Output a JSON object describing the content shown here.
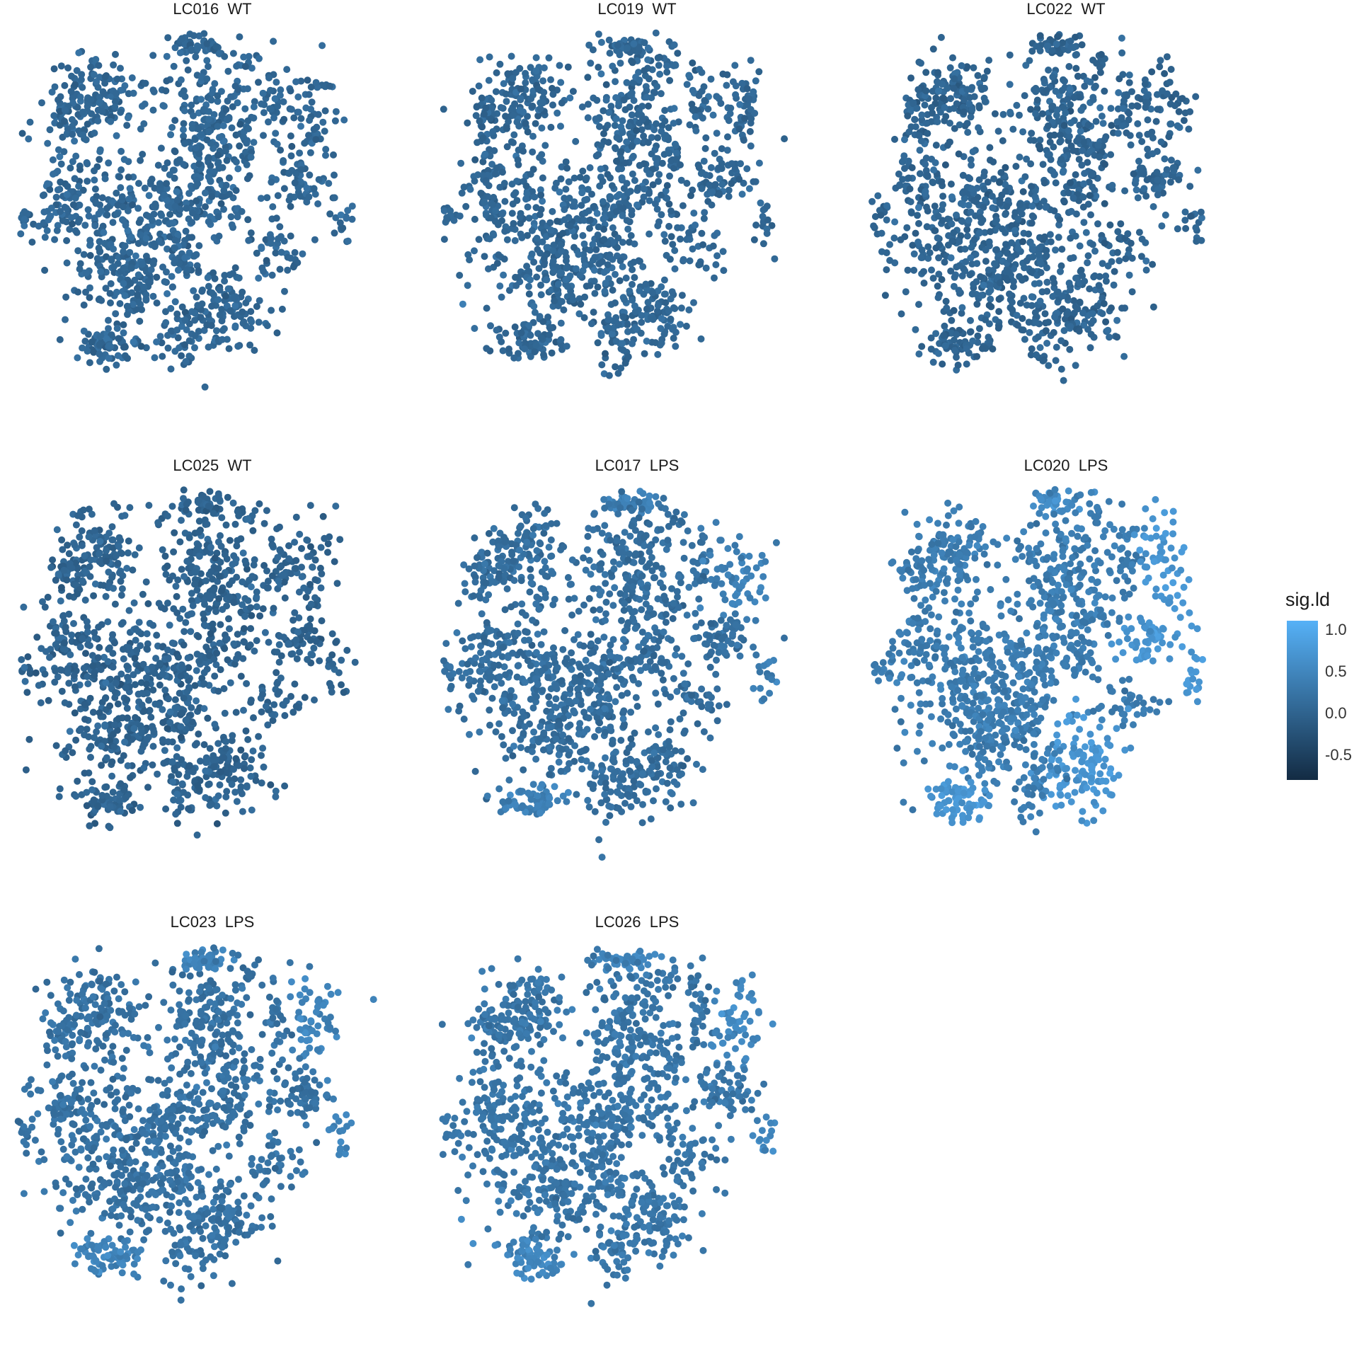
{
  "chart_data": {
    "type": "scatter",
    "facet_panels": [
      {
        "sample": "LC016",
        "condition": "WT"
      },
      {
        "sample": "LC019",
        "condition": "WT"
      },
      {
        "sample": "LC022",
        "condition": "WT"
      },
      {
        "sample": "LC025",
        "condition": "WT"
      },
      {
        "sample": "LC017",
        "condition": "LPS"
      },
      {
        "sample": "LC020",
        "condition": "LPS"
      },
      {
        "sample": "LC023",
        "condition": "LPS"
      },
      {
        "sample": "LC026",
        "condition": "LPS"
      }
    ],
    "panel_titles": [
      "LC016  WT",
      "LC019  WT",
      "LC022  WT",
      "LC025  WT",
      "LC017  LPS",
      "LC020  LPS",
      "LC023  LPS",
      "LC026  LPS"
    ],
    "axes_visible": false,
    "grid": false,
    "color_scale": {
      "title": "sig.ld",
      "low_color": "#132B43",
      "high_color": "#56B1F7",
      "range": [
        -0.8,
        1.1
      ],
      "tick_values": [
        1.0,
        0.5,
        0.0,
        -0.5
      ],
      "tick_labels": [
        "1.0",
        "0.5",
        "0.0",
        "-0.5"
      ],
      "position": "right"
    },
    "panel_mean_values": [
      0.05,
      0.05,
      0.02,
      0.0,
      0.15,
      0.35,
      0.2,
      0.25
    ]
  }
}
